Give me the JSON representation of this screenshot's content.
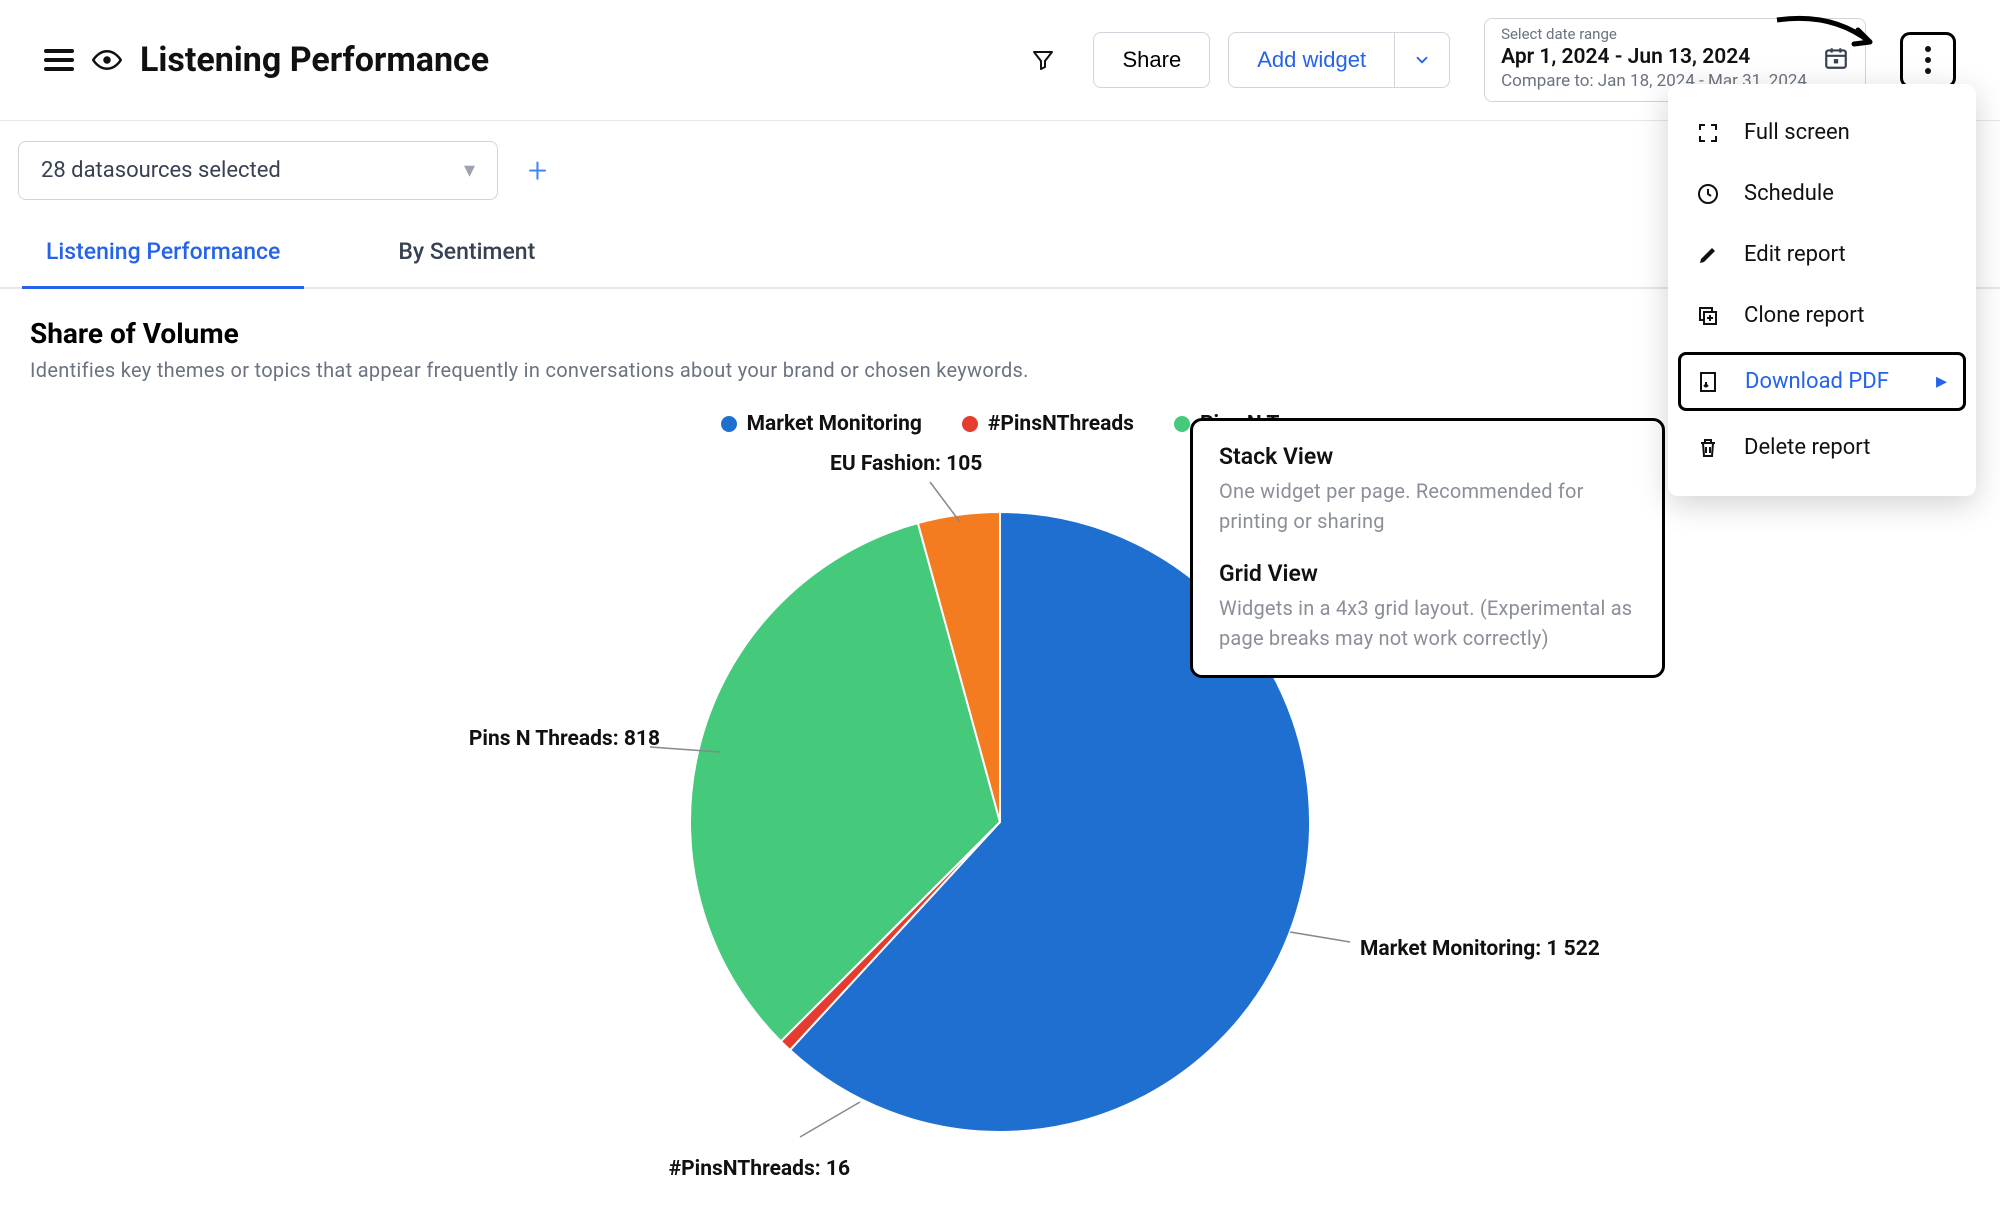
{
  "header": {
    "title": "Listening Performance",
    "share_label": "Share",
    "add_widget_label": "Add widget",
    "date": {
      "label": "Select date range",
      "range": "Apr 1, 2024 - Jun 13, 2024",
      "compare": "Compare to: Jan 18, 2024 - Mar 31, 2024"
    }
  },
  "datasource": {
    "selected_text": "28 datasources selected"
  },
  "tabs": {
    "t0": "Listening Performance",
    "t1": "By Sentiment"
  },
  "card": {
    "title": "Share of Volume",
    "subtitle": "Identifies key themes or topics that appear frequently in conversations about your brand or chosen keywords."
  },
  "chart": {
    "type": "pie",
    "background_color": "#ffffff",
    "legend_items": [
      {
        "label": "Market Monitoring",
        "color": "#1f6fd1"
      },
      {
        "label": "#PinsNThreads",
        "color": "#e63c2f"
      },
      {
        "label": "Pins N T",
        "color": "#45c97b"
      }
    ],
    "radius": 310,
    "slices": [
      {
        "name": "Market Monitoring",
        "value": 1522,
        "color": "#1f6fd1",
        "label": "Market Monitoring: 1 522"
      },
      {
        "name": "#PinsNThreads",
        "value": 16,
        "color": "#e63c2f",
        "label": "#PinsNThreads: 16"
      },
      {
        "name": "Pins N Threads",
        "value": 818,
        "color": "#45c97b",
        "label": "Pins N Threads: 818"
      },
      {
        "name": "EU Fashion",
        "value": 105,
        "color": "#f47b20",
        "label": "EU Fashion: 105"
      }
    ]
  },
  "menu": {
    "fullscreen": "Full screen",
    "schedule": "Schedule",
    "edit": "Edit report",
    "clone": "Clone report",
    "download_pdf": "Download PDF",
    "delete": "Delete report"
  },
  "submenu": {
    "stack_title": "Stack View",
    "stack_desc": "One widget per page. Recommended for printing or sharing",
    "grid_title": "Grid View",
    "grid_desc": "Widgets in a 4x3 grid layout. (Experimental as page breaks may not work correctly)"
  }
}
